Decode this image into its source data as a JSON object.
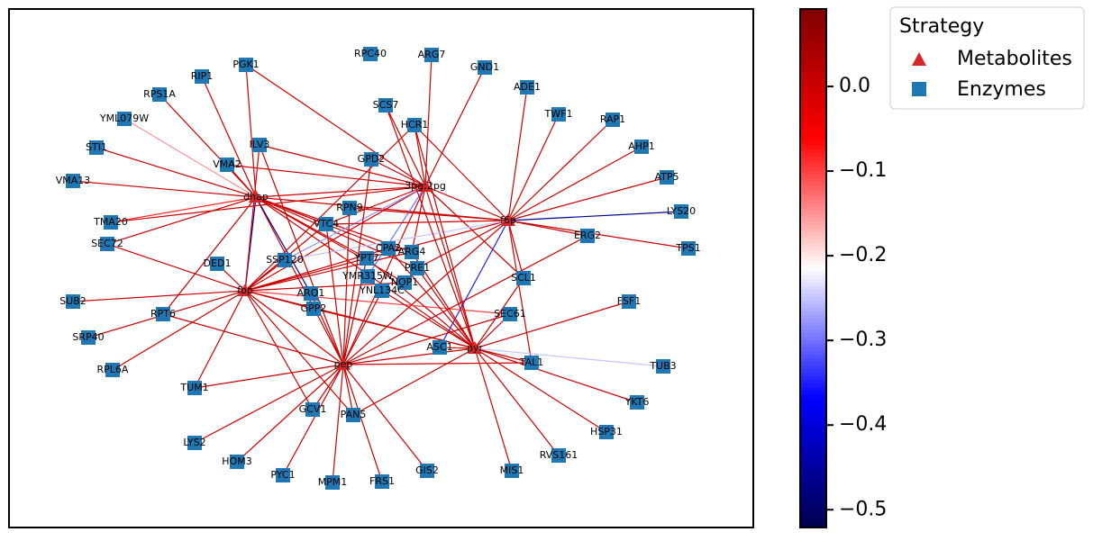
{
  "metabolites": [
    "dhap",
    "3pg;2pg",
    "f6p",
    "fbp",
    "pep",
    "pyr"
  ],
  "enzymes": [
    "RPC40",
    "ARG7",
    "GND1",
    "PGK1",
    "RIP1",
    "ADE1",
    "RPS1A",
    "SCS7",
    "TWF1",
    "YML079W",
    "HCR1",
    "RAP1",
    "ILV3",
    "STI1",
    "AHP1",
    "GPD2",
    "VMA2",
    "ATP5",
    "VMA13",
    "RPN9",
    "LYS20",
    "VTC4",
    "TMA20",
    "ERG2",
    "SEC72",
    "TPS1",
    "CPA2",
    "ARG4",
    "YPT7",
    "SSP120",
    "DED1",
    "PRE1",
    "YMR315W",
    "NOP1",
    "SCL1",
    "YNL134C",
    "ARO1",
    "SUB2",
    "FSF1",
    "GPP2",
    "RPT6",
    "SEC61",
    "SRP40",
    "ASC1",
    "TAL1",
    "TUB3",
    "RPL6A",
    "TUM1",
    "YKT6",
    "GCV1",
    "PAN5",
    "HSP31",
    "LYS2",
    "HOM3",
    "RVS161",
    "GIS2",
    "MIS1",
    "PYC1",
    "MPM1",
    "FRS1"
  ],
  "edges": [
    [
      "dhap",
      "RIP1",
      0.0
    ],
    [
      "dhap",
      "PGK1",
      0.0
    ],
    [
      "dhap",
      "RPS1A",
      0.0
    ],
    [
      "dhap",
      "YML079W",
      -0.15
    ],
    [
      "dhap",
      "VMA2",
      0.0
    ],
    [
      "dhap",
      "STI1",
      0.0
    ],
    [
      "dhap",
      "VMA13",
      0.0
    ],
    [
      "dhap",
      "TMA20",
      -0.08
    ],
    [
      "dhap",
      "SEC72",
      0.0
    ],
    [
      "dhap",
      "3pg;2pg",
      0.0
    ],
    [
      "dhap",
      "f6p",
      0.0
    ],
    [
      "dhap",
      "fbp",
      -0.45
    ],
    [
      "dhap",
      "pep",
      0.0
    ],
    [
      "dhap",
      "pyr",
      0.0
    ],
    [
      "dhap",
      "VTC4",
      0.0
    ],
    [
      "dhap",
      "CPA2",
      0.0
    ],
    [
      "dhap",
      "ARG4",
      0.0
    ],
    [
      "dhap",
      "PRE1",
      0.0
    ],
    [
      "dhap",
      "NOP1",
      0.0
    ],
    [
      "dhap",
      "YPT7",
      0.0
    ],
    [
      "dhap",
      "ARO1",
      -0.48
    ],
    [
      "dhap",
      "RPT6",
      0.0
    ],
    [
      "3pg;2pg",
      "SCS7",
      0.0
    ],
    [
      "3pg;2pg",
      "HCR1",
      0.0
    ],
    [
      "3pg;2pg",
      "GND1",
      0.0
    ],
    [
      "3pg;2pg",
      "ARG7",
      0.0
    ],
    [
      "3pg;2pg",
      "PGK1",
      0.0
    ],
    [
      "3pg;2pg",
      "ILV3",
      0.0
    ],
    [
      "3pg;2pg",
      "VMA2",
      0.0
    ],
    [
      "3pg;2pg",
      "GPD2",
      0.0
    ],
    [
      "3pg;2pg",
      "f6p",
      0.0
    ],
    [
      "3pg;2pg",
      "fbp",
      0.0
    ],
    [
      "3pg;2pg",
      "pep",
      0.0
    ],
    [
      "3pg;2pg",
      "pyr",
      0.0
    ],
    [
      "3pg;2pg",
      "SSP120",
      -0.28
    ],
    [
      "3pg;2pg",
      "YMR315W",
      -0.3
    ],
    [
      "3pg;2pg",
      "ARG4",
      0.0
    ],
    [
      "3pg;2pg",
      "SCL1",
      0.0
    ],
    [
      "3pg;2pg",
      "VTC4",
      0.0
    ],
    [
      "3pg;2pg",
      "TMA20",
      0.0
    ],
    [
      "f6p",
      "ADE1",
      0.0
    ],
    [
      "f6p",
      "RAP1",
      0.0
    ],
    [
      "f6p",
      "AHP1",
      0.0
    ],
    [
      "f6p",
      "ATP5",
      0.0
    ],
    [
      "f6p",
      "LYS20",
      -0.46
    ],
    [
      "f6p",
      "TPS1",
      0.0
    ],
    [
      "f6p",
      "ERG2",
      0.0
    ],
    [
      "f6p",
      "TWF1",
      0.0
    ],
    [
      "f6p",
      "HCR1",
      0.0
    ],
    [
      "f6p",
      "VTC4",
      0.0
    ],
    [
      "f6p",
      "RPN9",
      0.0
    ],
    [
      "f6p",
      "SCL1",
      0.0
    ],
    [
      "f6p",
      "ASC1",
      -0.35
    ],
    [
      "f6p",
      "fbp",
      0.0
    ],
    [
      "f6p",
      "pep",
      0.0
    ],
    [
      "f6p",
      "PRE1",
      0.0
    ],
    [
      "f6p",
      "SSP120",
      -0.25
    ],
    [
      "f6p",
      "TAL1",
      0.0
    ],
    [
      "fbp",
      "SUB2",
      0.0
    ],
    [
      "fbp",
      "SRP40",
      0.0
    ],
    [
      "fbp",
      "RPL6A",
      0.0
    ],
    [
      "fbp",
      "TUM1",
      0.0
    ],
    [
      "fbp",
      "GCV1",
      0.0
    ],
    [
      "fbp",
      "DED1",
      0.0
    ],
    [
      "fbp",
      "SEC72",
      0.0
    ],
    [
      "fbp",
      "ILV3",
      0.0
    ],
    [
      "fbp",
      "VTC4",
      0.0
    ],
    [
      "fbp",
      "CPA2",
      0.0
    ],
    [
      "fbp",
      "ARG4",
      0.0
    ],
    [
      "fbp",
      "NOP1",
      0.0
    ],
    [
      "fbp",
      "PAN5",
      0.0
    ],
    [
      "fbp",
      "pep",
      0.0
    ],
    [
      "fbp",
      "pyr",
      0.0
    ],
    [
      "fbp",
      "GPP2",
      0.0
    ],
    [
      "fbp",
      "SSP120",
      0.0
    ],
    [
      "fbp",
      "SEC61",
      -0.1
    ],
    [
      "fbp",
      "HCR1",
      0.0
    ],
    [
      "pep",
      "TUM1",
      0.0
    ],
    [
      "pep",
      "LYS2",
      0.0
    ],
    [
      "pep",
      "HOM3",
      0.0
    ],
    [
      "pep",
      "PYC1",
      0.0
    ],
    [
      "pep",
      "MPM1",
      0.0
    ],
    [
      "pep",
      "FRS1",
      0.0
    ],
    [
      "pep",
      "GIS2",
      0.0
    ],
    [
      "pep",
      "PAN5",
      0.0
    ],
    [
      "pep",
      "GCV1",
      0.0
    ],
    [
      "pep",
      "pyr",
      0.0
    ],
    [
      "pep",
      "TAL1",
      0.0
    ],
    [
      "pep",
      "ARO1",
      0.0
    ],
    [
      "pep",
      "ERG2",
      0.0
    ],
    [
      "pep",
      "SEC61",
      0.0
    ],
    [
      "pep",
      "VTC4",
      0.0
    ],
    [
      "pep",
      "YPT7",
      0.0
    ],
    [
      "pep",
      "RPN9",
      0.0
    ],
    [
      "pep",
      "GPD2",
      0.0
    ],
    [
      "pep",
      "YNL134C",
      0.0
    ],
    [
      "pep",
      "RPT6",
      0.0
    ],
    [
      "pep",
      "ILV3",
      0.0
    ],
    [
      "pyr",
      "YKT6",
      0.0
    ],
    [
      "pyr",
      "HSP31",
      0.0
    ],
    [
      "pyr",
      "RVS161",
      0.0
    ],
    [
      "pyr",
      "MIS1",
      0.0
    ],
    [
      "pyr",
      "TAL1",
      0.0
    ],
    [
      "pyr",
      "TUB3",
      -0.25
    ],
    [
      "pyr",
      "SEC61",
      0.0
    ],
    [
      "pyr",
      "FSF1",
      0.0
    ],
    [
      "pyr",
      "SCL1",
      0.0
    ],
    [
      "pyr",
      "ASC1",
      0.0
    ],
    [
      "pyr",
      "CPA2",
      0.0
    ],
    [
      "pyr",
      "ARG4",
      0.0
    ],
    [
      "pyr",
      "PRE1",
      0.0
    ],
    [
      "pyr",
      "YNL134C",
      0.0
    ],
    [
      "pyr",
      "HCR1",
      0.0
    ],
    [
      "pyr",
      "SCS7",
      0.0
    ],
    [
      "pyr",
      "PAN5",
      0.0
    ],
    [
      "pyr",
      "GPP2",
      0.0
    ],
    [
      "pyr",
      "YPT7",
      0.0
    ]
  ],
  "colorbar": {
    "lim": [
      -0.521,
      0.0915
    ],
    "ticks": [
      {
        "value": 0,
        "label": "0.0"
      },
      {
        "value": -0.1,
        "label": "−0.1"
      },
      {
        "value": -0.2,
        "label": "−0.2"
      },
      {
        "value": -0.3,
        "label": "−0.3"
      },
      {
        "value": -0.4,
        "label": "−0.4"
      },
      {
        "value": -0.5,
        "label": "−0.5"
      }
    ]
  },
  "legend": {
    "title": "Strategy",
    "entries": [
      "Metabolites",
      "Enzymes"
    ]
  }
}
